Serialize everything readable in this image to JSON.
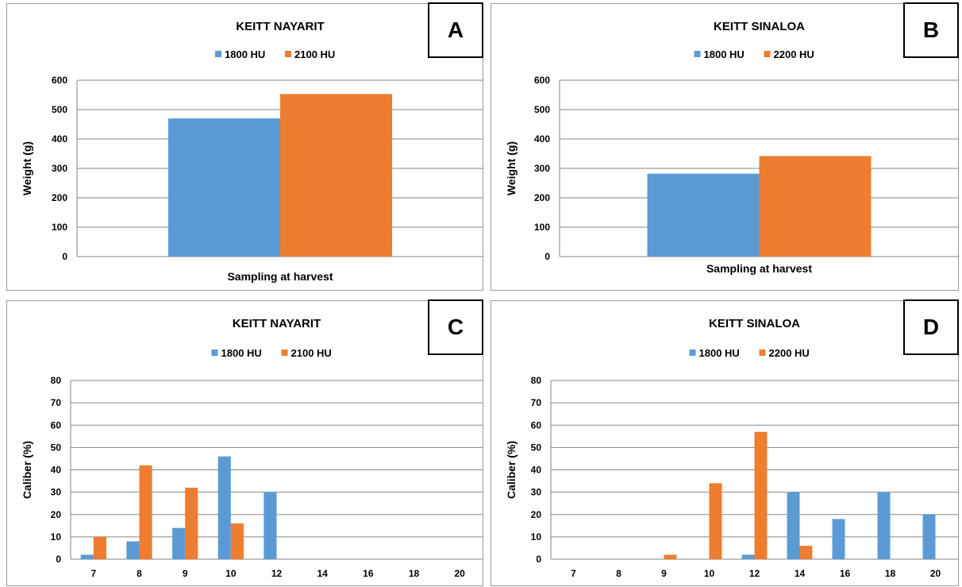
{
  "colors": {
    "series_1800": "#5b9bd5",
    "series_orange": "#ed7d31",
    "grid": "#868686"
  },
  "chart_data": [
    {
      "panel": "A",
      "type": "bar",
      "title": "KEITT NAYARIT",
      "xlabel": "Sampling at harvest",
      "ylabel": "Weight (g)",
      "ylim": [
        0,
        600
      ],
      "yticks": [
        "0",
        "100",
        "200",
        "300",
        "400",
        "500",
        "600"
      ],
      "categories": [
        ""
      ],
      "legend_position": "top",
      "series": [
        {
          "name": "1800 HU",
          "values": [
            470
          ]
        },
        {
          "name": "2100 HU",
          "values": [
            553
          ]
        }
      ]
    },
    {
      "panel": "B",
      "type": "bar",
      "title": "KEITT SINALOA",
      "xlabel": "Sampling at harvest",
      "ylabel": "Weight (g)",
      "ylim": [
        0,
        600
      ],
      "yticks": [
        "0",
        "100",
        "200",
        "300",
        "400",
        "500",
        "600"
      ],
      "categories": [
        ""
      ],
      "legend_position": "top",
      "series": [
        {
          "name": "1800 HU",
          "values": [
            282
          ]
        },
        {
          "name": "2200 HU",
          "values": [
            342
          ]
        }
      ]
    },
    {
      "panel": "C",
      "type": "bar",
      "title": "KEITT NAYARIT",
      "xlabel": "",
      "ylabel": "Caliber (%)",
      "ylim": [
        0,
        80
      ],
      "yticks": [
        "0",
        "10",
        "20",
        "30",
        "40",
        "50",
        "60",
        "70",
        "80"
      ],
      "categories": [
        "7",
        "8",
        "9",
        "10",
        "12",
        "14",
        "16",
        "18",
        "20"
      ],
      "legend_position": "top",
      "series": [
        {
          "name": "1800 HU",
          "values": [
            2,
            8,
            14,
            46,
            30,
            0,
            0,
            0,
            0
          ]
        },
        {
          "name": "2100 HU",
          "values": [
            10,
            42,
            32,
            16,
            0,
            0,
            0,
            0,
            0
          ]
        }
      ]
    },
    {
      "panel": "D",
      "type": "bar",
      "title": "KEITT SINALOA",
      "xlabel": "",
      "ylabel": "Caliber (%)",
      "ylim": [
        0,
        80
      ],
      "yticks": [
        "0",
        "10",
        "20",
        "30",
        "40",
        "50",
        "60",
        "70",
        "80"
      ],
      "categories": [
        "7",
        "8",
        "9",
        "10",
        "12",
        "14",
        "16",
        "18",
        "20"
      ],
      "legend_position": "top",
      "series": [
        {
          "name": "1800 HU",
          "values": [
            0,
            0,
            0,
            0,
            2,
            30,
            18,
            30,
            20
          ]
        },
        {
          "name": "2200 HU",
          "values": [
            0,
            0,
            2,
            34,
            57,
            6,
            0,
            0,
            0
          ]
        }
      ]
    }
  ]
}
